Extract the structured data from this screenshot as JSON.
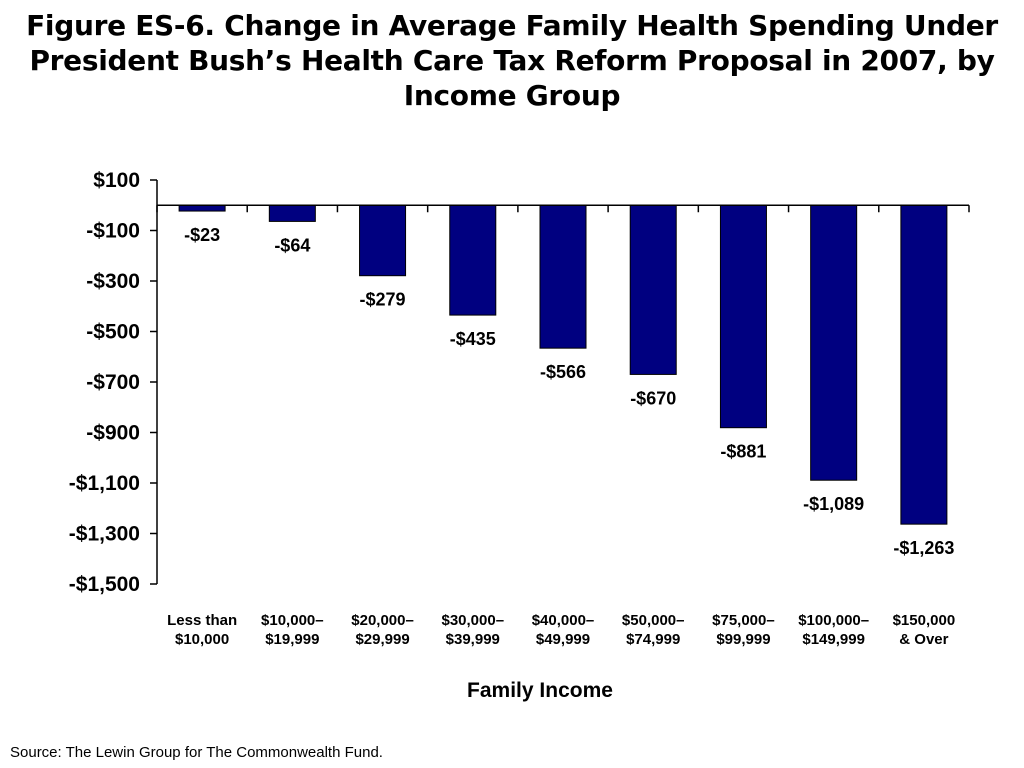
{
  "chart_data": {
    "type": "bar",
    "title": "Figure ES-6. Change in Average Family Health Spending Under President Bush’s Health Care Tax Reform Proposal in 2007, by Income Group",
    "xlabel": "Family Income",
    "ylabel": "",
    "ylim": [
      -1500,
      100
    ],
    "yticks": [
      100,
      -100,
      -300,
      -500,
      -700,
      -900,
      -1100,
      -1300,
      -1500
    ],
    "ytick_labels": [
      "$100",
      "-$100",
      "-$300",
      "-$500",
      "-$700",
      "-$900",
      "-$1,100",
      "-$1,300",
      "-$1,500"
    ],
    "categories": [
      [
        "Less than",
        "$10,000"
      ],
      [
        "$10,000–",
        "$19,999"
      ],
      [
        "$20,000–",
        "$29,999"
      ],
      [
        "$30,000–",
        "$39,999"
      ],
      [
        "$40,000–",
        "$49,999"
      ],
      [
        "$50,000–",
        "$74,999"
      ],
      [
        "$75,000–",
        "$99,999"
      ],
      [
        "$100,000–",
        "$149,999"
      ],
      [
        "$150,000",
        "& Over"
      ]
    ],
    "values": [
      -23,
      -64,
      -279,
      -435,
      -566,
      -670,
      -881,
      -1089,
      -1263
    ],
    "data_labels": [
      "-$23",
      "-$64",
      "-$279",
      "-$435",
      "-$566",
      "-$670",
      "-$881",
      "-$1,089",
      "-$1,263"
    ],
    "bar_color": "#000080",
    "grid": false,
    "legend": "none"
  },
  "source": "Source: The Lewin Group for The Commonwealth Fund."
}
